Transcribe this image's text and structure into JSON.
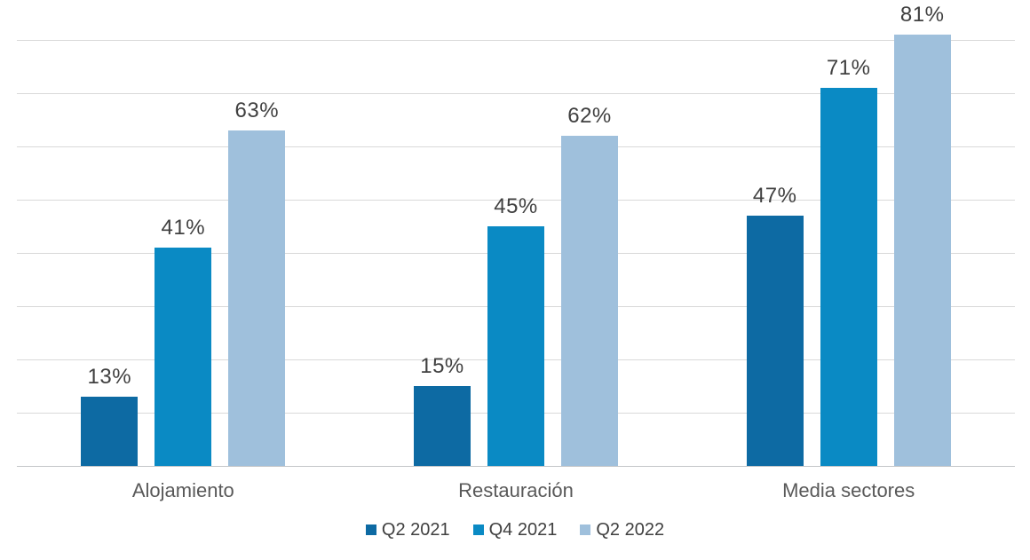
{
  "chart_data": {
    "type": "bar",
    "categories": [
      "Alojamiento",
      "Restauración",
      "Media sectores"
    ],
    "series": [
      {
        "name": "Q2 2021",
        "color": "#0d6aa3",
        "values": [
          13,
          15,
          47
        ]
      },
      {
        "name": "Q4 2021",
        "color": "#0a8ac4",
        "values": [
          41,
          45,
          71
        ]
      },
      {
        "name": "Q2 2022",
        "color": "#9fc0dc",
        "values": [
          63,
          62,
          81
        ]
      }
    ],
    "value_labels": [
      [
        "13%",
        "15%",
        "47%"
      ],
      [
        "41%",
        "45%",
        "71%"
      ],
      [
        "63%",
        "62%",
        "81%"
      ]
    ],
    "value_suffix": "%",
    "title": "",
    "xlabel": "",
    "ylabel": "",
    "ylim": [
      0,
      80
    ],
    "gridline_step": 10,
    "grid": true,
    "y_axis_labels_visible": false,
    "legend_position": "bottom",
    "legend_labels": [
      "Q2 2021",
      "Q4 2021",
      "Q2 2022"
    ]
  },
  "colors": {
    "background": "#ffffff",
    "gridline": "#d9d9d9",
    "axis_line": "#c3c6c8",
    "value_label_text": "#404040",
    "category_label_text": "#595959",
    "legend_text": "#404040"
  }
}
